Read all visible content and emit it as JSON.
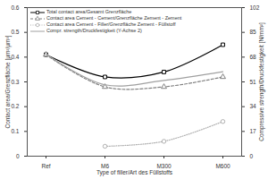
{
  "chart_data": {
    "type": "line",
    "x_label": "Type of filler/Art des Füllstoffs",
    "y_label": "Contact area/Grenzfläche [µm²/µm³]",
    "y2_label": "Compressive strength/Druckfestigkeit [N/mm²]",
    "categories": [
      "Ref",
      "M6",
      "M300",
      "M600"
    ],
    "ylim": [
      0,
      0.6
    ],
    "yticks": [
      0,
      0.1,
      0.2,
      0.3,
      0.4,
      0.5,
      0.6
    ],
    "y2lim": [
      0,
      102
    ],
    "y2ticks": [
      0,
      17,
      34,
      51,
      68,
      85,
      102
    ],
    "grid": false,
    "legend": "top-left",
    "series": [
      {
        "name": "Total contact area/Gesamt Grenzfläche",
        "color": "#000000",
        "marker": "square",
        "line_style": "solid",
        "values": [
          0.41,
          0.32,
          0.34,
          0.45
        ]
      },
      {
        "name": "Contact area Cement - Cement/Grenzfläche Zement - Zement",
        "color": "#808080",
        "marker": "triangle",
        "line_style": "dashed",
        "values": [
          0.41,
          0.28,
          0.28,
          0.32
        ]
      },
      {
        "name": "Contact area Cement - Filler/Grenzfläche Zement - Füllstoff",
        "color": "#b0b0b0",
        "marker": "circle",
        "line_style": "dotted",
        "values": [
          null,
          0.04,
          0.06,
          0.14
        ]
      },
      {
        "name": "Compr. strength/Druckfestigkeit (Y-Achse 2)",
        "color": "#a0a0a0",
        "marker": "none",
        "line_style": "solid",
        "axis": "y2",
        "values": [
          70,
          49,
          52,
          58
        ]
      }
    ]
  }
}
